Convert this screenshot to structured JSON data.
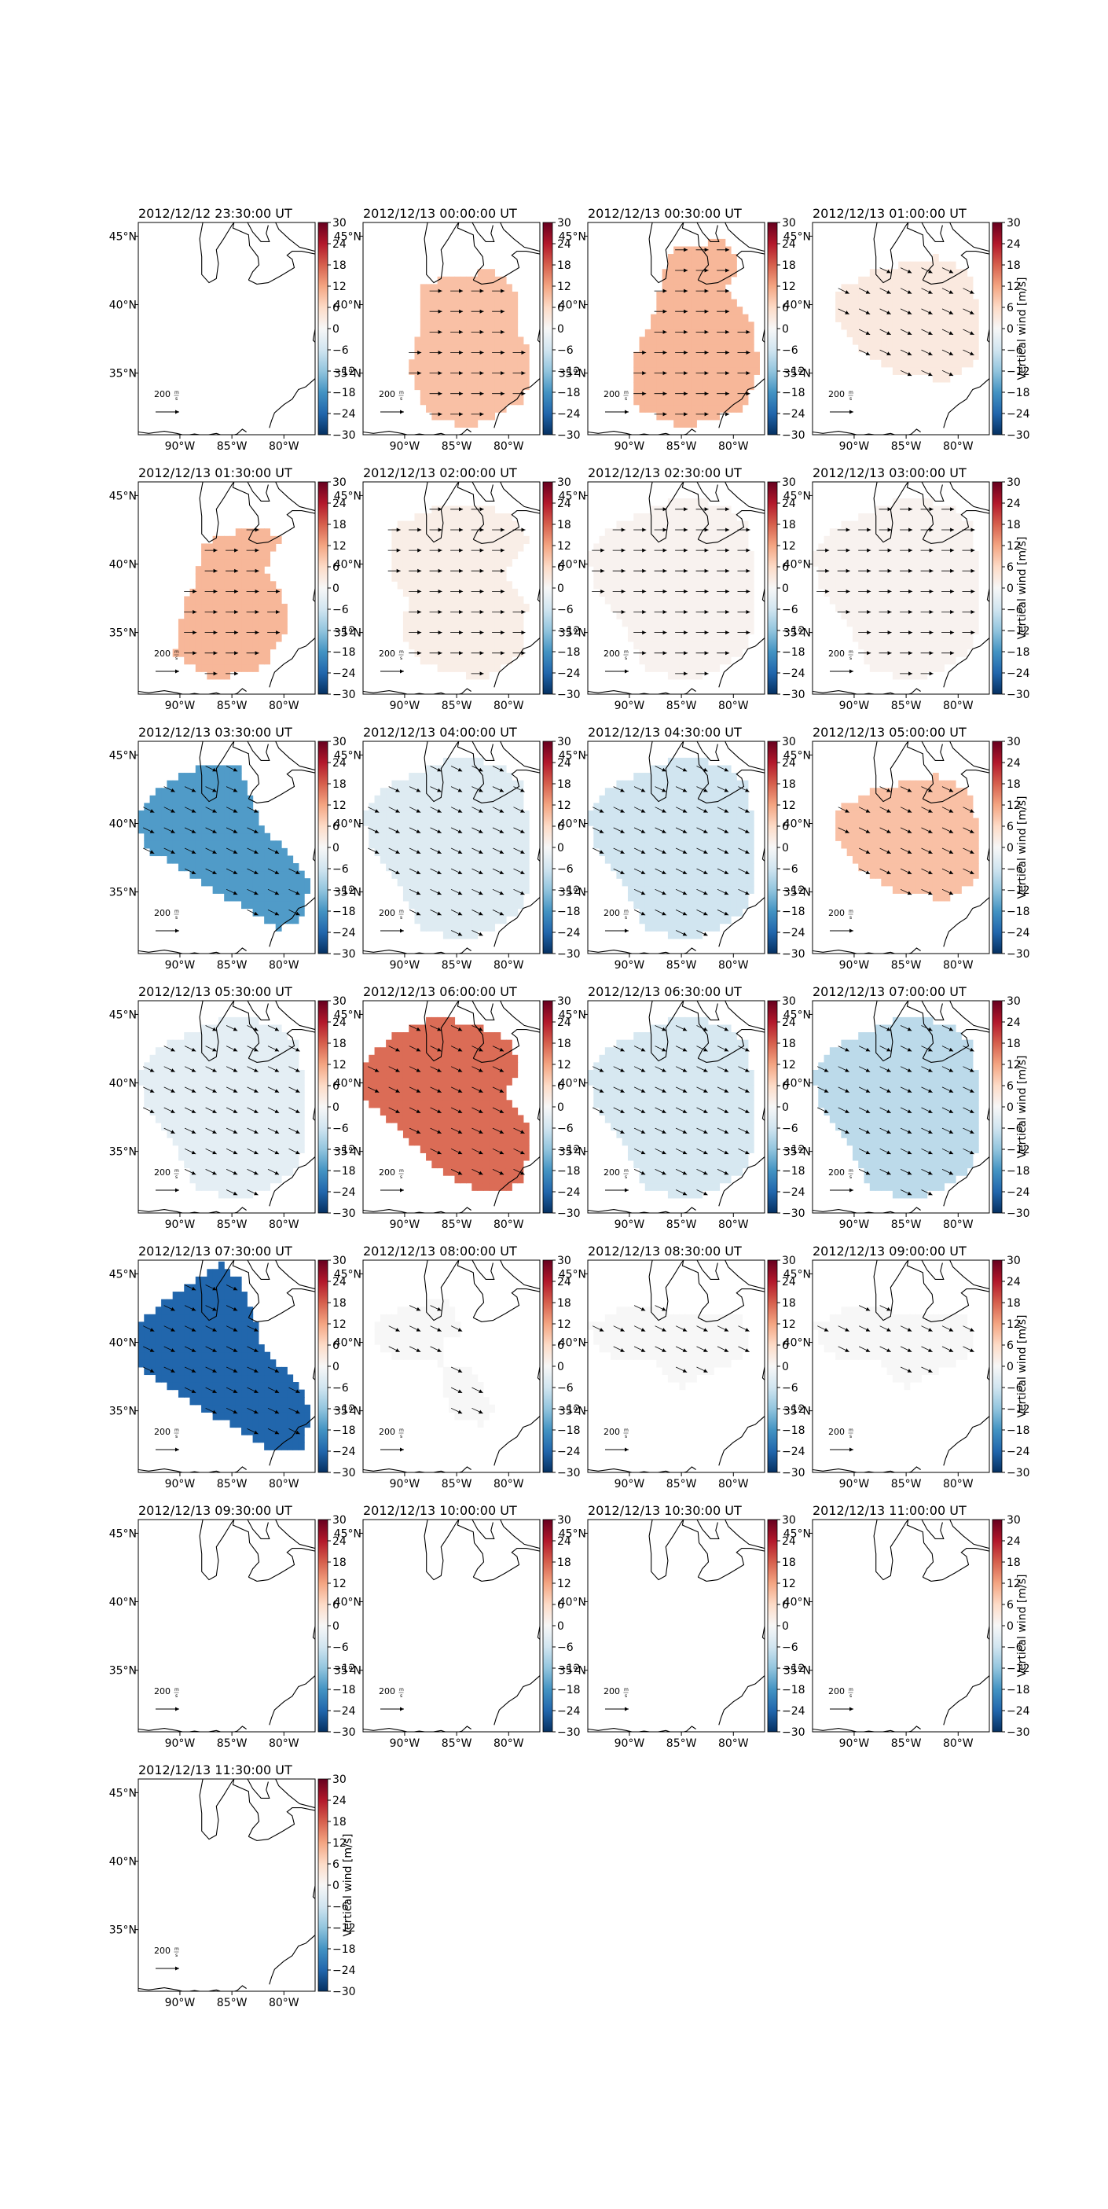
{
  "chart_data": {
    "type": "heatmap",
    "layout": {
      "rows": 7,
      "cols": 4,
      "panels": 25
    },
    "colormap": "RdBu_r",
    "colorbar": {
      "label": "Vertical wind [m/s]",
      "ticks": [
        30,
        24,
        18,
        12,
        6,
        0,
        -6,
        -12,
        -18,
        -24,
        -30
      ],
      "tick_labels": [
        "30",
        "24",
        "18",
        "12",
        "6",
        "0",
        "−6",
        "−12",
        "−18",
        "−24",
        "−30"
      ],
      "range": [
        -30,
        30
      ],
      "label_shown_on_panels": [
        3,
        7,
        11,
        15,
        19,
        23,
        24
      ]
    },
    "map": {
      "lon_range": [
        -94,
        -77
      ],
      "lat_range": [
        30.5,
        46
      ],
      "lon_ticks": [
        -90,
        -85,
        -80
      ],
      "lon_tick_labels": [
        "90°W",
        "85°W",
        "80°W"
      ],
      "lat_ticks": [
        45,
        40,
        35
      ],
      "lat_tick_labels": [
        "45°N",
        "40°N",
        "35°N"
      ],
      "coastlines": true,
      "grid": false
    },
    "reference_vector": {
      "label": "200",
      "unit_num": "m",
      "unit_den": "s"
    },
    "panels": [
      {
        "title": "2012/12/12 23:30:00 UT",
        "value": null,
        "region": "none",
        "vectors": "none"
      },
      {
        "title": "2012/12/13 00:00:00 UT",
        "value": 9,
        "region": "A",
        "vectors": "east"
      },
      {
        "title": "2012/12/13 00:30:00 UT",
        "value": 10,
        "region": "B",
        "vectors": "east"
      },
      {
        "title": "2012/12/13 01:00:00 UT",
        "value": 3,
        "region": "C",
        "vectors": "southeast"
      },
      {
        "title": "2012/12/13 01:30:00 UT",
        "value": 10,
        "region": "D",
        "vectors": "east"
      },
      {
        "title": "2012/12/13 02:00:00 UT",
        "value": 2,
        "region": "E",
        "vectors": "east"
      },
      {
        "title": "2012/12/13 02:30:00 UT",
        "value": 1,
        "region": "F",
        "vectors": "east"
      },
      {
        "title": "2012/12/13 03:00:00 UT",
        "value": 1,
        "region": "F",
        "vectors": "east"
      },
      {
        "title": "2012/12/13 03:30:00 UT",
        "value": -17,
        "region": "G",
        "vectors": "southeast"
      },
      {
        "title": "2012/12/13 04:00:00 UT",
        "value": -4,
        "region": "F",
        "vectors": "southeast"
      },
      {
        "title": "2012/12/13 04:30:00 UT",
        "value": -6,
        "region": "F",
        "vectors": "southeast"
      },
      {
        "title": "2012/12/13 05:00:00 UT",
        "value": 9,
        "region": "C",
        "vectors": "southeast"
      },
      {
        "title": "2012/12/13 05:30:00 UT",
        "value": -3,
        "region": "F",
        "vectors": "southeast"
      },
      {
        "title": "2012/12/13 06:00:00 UT",
        "value": 17,
        "region": "H",
        "vectors": "southeast"
      },
      {
        "title": "2012/12/13 06:30:00 UT",
        "value": -5,
        "region": "F",
        "vectors": "southeast"
      },
      {
        "title": "2012/12/13 07:00:00 UT",
        "value": -8,
        "region": "F",
        "vectors": "southeast"
      },
      {
        "title": "2012/12/13 07:30:00 UT",
        "value": -24,
        "region": "I",
        "vectors": "southeast"
      },
      {
        "title": "2012/12/13 08:00:00 UT",
        "value": 0,
        "region": "J",
        "vectors": "southeast"
      },
      {
        "title": "2012/12/13 08:30:00 UT",
        "value": 0,
        "region": "K",
        "vectors": "southeast"
      },
      {
        "title": "2012/12/13 09:00:00 UT",
        "value": 0,
        "region": "K",
        "vectors": "southeast"
      },
      {
        "title": "2012/12/13 09:30:00 UT",
        "value": null,
        "region": "none",
        "vectors": "none"
      },
      {
        "title": "2012/12/13 10:00:00 UT",
        "value": null,
        "region": "none",
        "vectors": "none"
      },
      {
        "title": "2012/12/13 10:30:00 UT",
        "value": null,
        "region": "none",
        "vectors": "none"
      },
      {
        "title": "2012/12/13 11:00:00 UT",
        "value": null,
        "region": "none",
        "vectors": "none"
      },
      {
        "title": "2012/12/13 11:30:00 UT",
        "value": null,
        "region": "none",
        "vectors": "none"
      }
    ]
  }
}
